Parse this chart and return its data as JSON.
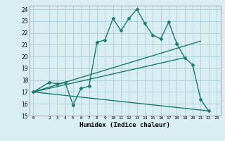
{
  "xlabel": "Humidex (Indice chaleur)",
  "xlim": [
    -0.5,
    23.5
  ],
  "ylim": [
    15,
    24.3
  ],
  "yticks": [
    15,
    16,
    17,
    18,
    19,
    20,
    21,
    22,
    23,
    24
  ],
  "xticks": [
    0,
    2,
    3,
    4,
    5,
    6,
    7,
    8,
    9,
    10,
    11,
    12,
    13,
    14,
    15,
    16,
    17,
    18,
    19,
    20,
    21,
    22,
    23
  ],
  "bg_color": "#d9eef3",
  "grid_color": "#aacdd6",
  "line_color": "#1a7a6a",
  "line_width": 1.0,
  "marker": "D",
  "marker_size": 2.5,
  "series_main": {
    "x": [
      0,
      2,
      3,
      4,
      5,
      6,
      7,
      8,
      9,
      10,
      11,
      12,
      13,
      14,
      15,
      16,
      17,
      18,
      19,
      20,
      21,
      22
    ],
    "y": [
      17.0,
      17.8,
      17.7,
      17.8,
      15.9,
      17.3,
      17.5,
      21.2,
      21.4,
      23.2,
      22.2,
      23.2,
      24.0,
      22.8,
      21.8,
      21.5,
      22.9,
      21.1,
      19.9,
      19.3,
      16.4,
      15.4
    ]
  },
  "fan_lines": [
    {
      "x": [
        0,
        21
      ],
      "y": [
        17.0,
        21.3
      ]
    },
    {
      "x": [
        0,
        19
      ],
      "y": [
        17.0,
        19.9
      ]
    },
    {
      "x": [
        0,
        22
      ],
      "y": [
        17.0,
        15.4
      ]
    }
  ]
}
